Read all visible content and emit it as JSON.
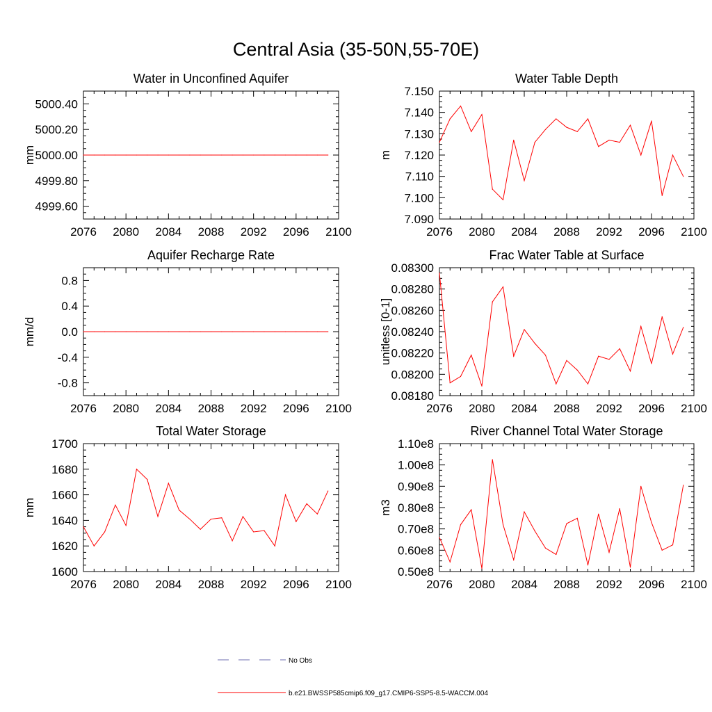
{
  "title": "Central Asia (35-50N,55-70E)",
  "chart_data": [
    {
      "type": "line",
      "title": "Water in Unconfined Aquifer",
      "ylabel": "mm",
      "xlim": [
        2076,
        2100
      ],
      "ylim": [
        4999.5,
        5000.5
      ],
      "xticks": [
        "2076",
        "2080",
        "2084",
        "2088",
        "2092",
        "2096",
        "2100"
      ],
      "yticks": [
        "4999.60",
        "4999.80",
        "5000.00",
        "5000.20",
        "5000.40"
      ],
      "x": [
        2076,
        2077,
        2078,
        2079,
        2080,
        2081,
        2082,
        2083,
        2084,
        2085,
        2086,
        2087,
        2088,
        2089,
        2090,
        2091,
        2092,
        2093,
        2094,
        2095,
        2096,
        2097,
        2098,
        2099
      ],
      "series": [
        {
          "values": [
            5000,
            5000,
            5000,
            5000,
            5000,
            5000,
            5000,
            5000,
            5000,
            5000,
            5000,
            5000,
            5000,
            5000,
            5000,
            5000,
            5000,
            5000,
            5000,
            5000,
            5000,
            5000,
            5000,
            5000
          ]
        }
      ]
    },
    {
      "type": "line",
      "title": "Water Table Depth",
      "ylabel": "m",
      "xlim": [
        2076,
        2100
      ],
      "ylim": [
        7.09,
        7.15
      ],
      "xticks": [
        "2076",
        "2080",
        "2084",
        "2088",
        "2092",
        "2096",
        "2100"
      ],
      "yticks": [
        "7.090",
        "7.100",
        "7.110",
        "7.120",
        "7.130",
        "7.140",
        "7.150"
      ],
      "x": [
        2076,
        2077,
        2078,
        2079,
        2080,
        2081,
        2082,
        2083,
        2084,
        2085,
        2086,
        2087,
        2088,
        2089,
        2090,
        2091,
        2092,
        2093,
        2094,
        2095,
        2096,
        2097,
        2098,
        2099
      ],
      "series": [
        {
          "values": [
            7.126,
            7.137,
            7.143,
            7.131,
            7.139,
            7.104,
            7.099,
            7.127,
            7.108,
            7.126,
            7.132,
            7.137,
            7.133,
            7.131,
            7.137,
            7.124,
            7.127,
            7.126,
            7.134,
            7.12,
            7.136,
            7.101,
            7.12,
            7.11
          ]
        }
      ]
    },
    {
      "type": "line",
      "title": "Aquifer Recharge Rate",
      "ylabel": "mm/d",
      "xlim": [
        2076,
        2100
      ],
      "ylim": [
        -1.0,
        1.0
      ],
      "xticks": [
        "2076",
        "2080",
        "2084",
        "2088",
        "2092",
        "2096",
        "2100"
      ],
      "yticks": [
        "-0.8",
        "-0.4",
        "0.0",
        "0.4",
        "0.8"
      ],
      "x": [
        2076,
        2077,
        2078,
        2079,
        2080,
        2081,
        2082,
        2083,
        2084,
        2085,
        2086,
        2087,
        2088,
        2089,
        2090,
        2091,
        2092,
        2093,
        2094,
        2095,
        2096,
        2097,
        2098,
        2099
      ],
      "series": [
        {
          "values": [
            0,
            0,
            0,
            0,
            0,
            0,
            0,
            0,
            0,
            0,
            0,
            0,
            0,
            0,
            0,
            0,
            0,
            0,
            0,
            0,
            0,
            0,
            0,
            0
          ]
        }
      ]
    },
    {
      "type": "line",
      "title": "Frac Water Table at Surface",
      "ylabel": "unitless [0-1]",
      "xlim": [
        2076,
        2100
      ],
      "ylim": [
        0.0818,
        0.083
      ],
      "xticks": [
        "2076",
        "2080",
        "2084",
        "2088",
        "2092",
        "2096",
        "2100"
      ],
      "yticks": [
        "0.08180",
        "0.08200",
        "0.08220",
        "0.08240",
        "0.08260",
        "0.08280",
        "0.08300"
      ],
      "x": [
        2076,
        2077,
        2078,
        2079,
        2080,
        2081,
        2082,
        2083,
        2084,
        2085,
        2086,
        2087,
        2088,
        2089,
        2090,
        2091,
        2092,
        2093,
        2094,
        2095,
        2096,
        2097,
        2098,
        2099
      ],
      "series": [
        {
          "values": [
            0.08295,
            0.08192,
            0.08198,
            0.08218,
            0.08189,
            0.08268,
            0.08282,
            0.08217,
            0.08242,
            0.08229,
            0.08218,
            0.08191,
            0.08213,
            0.08204,
            0.08191,
            0.08217,
            0.08214,
            0.08224,
            0.08203,
            0.08245,
            0.0821,
            0.08254,
            0.08219,
            0.08244
          ]
        }
      ]
    },
    {
      "type": "line",
      "title": "Total Water Storage",
      "ylabel": "mm",
      "xlim": [
        2076,
        2100
      ],
      "ylim": [
        1600,
        1700
      ],
      "xticks": [
        "2076",
        "2080",
        "2084",
        "2088",
        "2092",
        "2096",
        "2100"
      ],
      "yticks": [
        "1600",
        "1620",
        "1640",
        "1660",
        "1680",
        "1700"
      ],
      "x": [
        2076,
        2077,
        2078,
        2079,
        2080,
        2081,
        2082,
        2083,
        2084,
        2085,
        2086,
        2087,
        2088,
        2089,
        2090,
        2091,
        2092,
        2093,
        2094,
        2095,
        2096,
        2097,
        2098,
        2099
      ],
      "series": [
        {
          "values": [
            1635,
            1620,
            1631,
            1652,
            1636,
            1680,
            1672,
            1643,
            1669,
            1648,
            1641,
            1633,
            1641,
            1642,
            1624,
            1643,
            1631,
            1632,
            1620,
            1660,
            1639,
            1653,
            1645,
            1663
          ]
        }
      ]
    },
    {
      "type": "line",
      "title": "River Channel Total Water Storage",
      "ylabel": "m3",
      "xlim": [
        2076,
        2100
      ],
      "ylim": [
        50000000.0,
        110000000.0
      ],
      "xticks": [
        "2076",
        "2080",
        "2084",
        "2088",
        "2092",
        "2096",
        "2100"
      ],
      "yticks": [
        "0.50e8",
        "0.60e8",
        "0.70e8",
        "0.80e8",
        "0.90e8",
        "1.00e8",
        "1.10e8"
      ],
      "x": [
        2076,
        2077,
        2078,
        2079,
        2080,
        2081,
        2082,
        2083,
        2084,
        2085,
        2086,
        2087,
        2088,
        2089,
        2090,
        2091,
        2092,
        2093,
        2094,
        2095,
        2096,
        2097,
        2098,
        2099
      ],
      "series": [
        {
          "values": [
            66000000.0,
            54500000.0,
            72000000.0,
            79000000.0,
            51500000.0,
            102500000.0,
            72000000.0,
            55500000.0,
            78000000.0,
            69000000.0,
            61000000.0,
            58000000.0,
            72500000.0,
            75000000.0,
            53000000.0,
            77000000.0,
            59000000.0,
            79500000.0,
            52000000.0,
            90000000.0,
            73000000.0,
            60000000.0,
            62500000.0,
            90500000.0
          ]
        }
      ]
    }
  ],
  "legend": [
    {
      "label": "No Obs",
      "color": "#6f6fb0",
      "dash": true
    },
    {
      "label": "b.e21.BWSSP585cmip6.f09_g17.CMIP6-SSP5-8.5-WACCM.004",
      "color": "#ff0000",
      "dash": false
    }
  ],
  "colors": {
    "series": "#ff0000",
    "axes": "#000000"
  }
}
